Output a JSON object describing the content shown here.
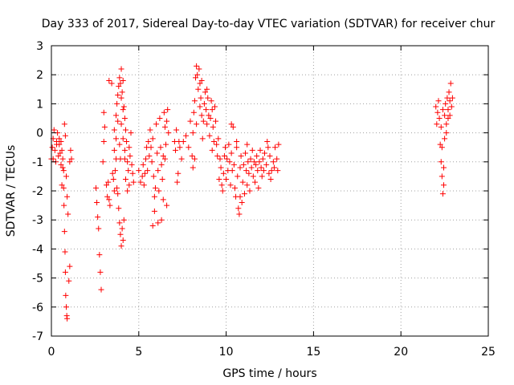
{
  "chart_data": {
    "type": "scatter",
    "title": "Day 333 of 2017, Sidereal Day-to-day VTEC variation (SDTVAR) for receiver chur",
    "xlabel": "GPS time / hours",
    "ylabel": "SDTVAR / TECUs",
    "xlim": [
      0,
      25
    ],
    "ylim": [
      -7,
      3
    ],
    "xticks": [
      0,
      5,
      10,
      15,
      20,
      25
    ],
    "yticks": [
      -7,
      -6,
      -5,
      -4,
      -3,
      -2,
      -1,
      0,
      1,
      2,
      3
    ],
    "grid": true,
    "marker": "+",
    "color": "#ff0000",
    "series": [
      {
        "name": "SDTVAR",
        "points": [
          [
            0.0,
            -0.9
          ],
          [
            0.05,
            -0.5
          ],
          [
            0.1,
            -0.2
          ],
          [
            0.15,
            0.1
          ],
          [
            0.2,
            -0.6
          ],
          [
            0.25,
            -1.0
          ],
          [
            0.3,
            -0.3
          ],
          [
            0.35,
            0.0
          ],
          [
            0.4,
            -0.8
          ],
          [
            0.45,
            -0.4
          ],
          [
            0.5,
            -0.7
          ],
          [
            0.55,
            -1.1
          ],
          [
            0.6,
            -0.6
          ],
          [
            0.65,
            -0.9
          ],
          [
            0.7,
            -1.9
          ],
          [
            0.72,
            -2.5
          ],
          [
            0.75,
            -3.4
          ],
          [
            0.78,
            -4.1
          ],
          [
            0.8,
            -4.8
          ],
          [
            0.82,
            -5.6
          ],
          [
            0.85,
            -6.0
          ],
          [
            0.88,
            -6.3
          ],
          [
            0.9,
            -6.4
          ],
          [
            0.75,
            0.3
          ],
          [
            0.8,
            -0.1
          ],
          [
            0.85,
            -1.5
          ],
          [
            0.9,
            -2.2
          ],
          [
            0.95,
            -2.8
          ],
          [
            1.0,
            -5.1
          ],
          [
            1.05,
            -1.0
          ],
          [
            1.1,
            -0.6
          ],
          [
            1.15,
            -0.9
          ],
          [
            1.05,
            -4.6
          ],
          [
            0.6,
            -1.8
          ],
          [
            0.65,
            -1.2
          ],
          [
            0.1,
            -0.9
          ],
          [
            0.3,
            -0.4
          ],
          [
            0.45,
            -0.2
          ],
          [
            0.55,
            -0.3
          ],
          [
            0.7,
            -1.3
          ],
          [
            2.55,
            -1.9
          ],
          [
            2.6,
            -2.4
          ],
          [
            2.65,
            -2.9
          ],
          [
            2.7,
            -3.3
          ],
          [
            2.75,
            -4.2
          ],
          [
            2.8,
            -4.8
          ],
          [
            2.85,
            -5.4
          ],
          [
            2.95,
            -1.0
          ],
          [
            3.0,
            -0.3
          ],
          [
            3.05,
            0.2
          ],
          [
            3.0,
            0.7
          ],
          [
            3.15,
            -1.8
          ],
          [
            3.2,
            -2.2
          ],
          [
            3.25,
            -1.7
          ],
          [
            3.3,
            -2.3
          ],
          [
            3.35,
            -2.5
          ],
          [
            3.3,
            1.8
          ],
          [
            3.45,
            1.7
          ],
          [
            3.5,
            -1.4
          ],
          [
            3.55,
            -1.6
          ],
          [
            3.6,
            -2.0
          ],
          [
            3.65,
            -1.3
          ],
          [
            3.7,
            -0.9
          ],
          [
            3.75,
            -1.9
          ],
          [
            3.8,
            -2.1
          ],
          [
            3.85,
            -2.6
          ],
          [
            3.9,
            -3.1
          ],
          [
            3.95,
            -3.5
          ],
          [
            4.0,
            -3.9
          ],
          [
            4.05,
            -3.3
          ],
          [
            4.1,
            -3.7
          ],
          [
            4.15,
            -3.0
          ],
          [
            3.6,
            0.1
          ],
          [
            3.7,
            0.6
          ],
          [
            3.75,
            1.0
          ],
          [
            3.8,
            1.3
          ],
          [
            3.85,
            1.6
          ],
          [
            3.9,
            1.9
          ],
          [
            3.95,
            1.7
          ],
          [
            4.0,
            2.2
          ],
          [
            4.05,
            1.4
          ],
          [
            4.1,
            1.8
          ],
          [
            4.15,
            0.9
          ],
          [
            4.2,
            0.5
          ],
          [
            3.6,
            -0.6
          ],
          [
            3.7,
            -0.2
          ],
          [
            3.8,
            0.4
          ],
          [
            3.9,
            -0.4
          ],
          [
            4.0,
            0.3
          ],
          [
            4.1,
            -0.2
          ],
          [
            4.2,
            -0.6
          ],
          [
            4.25,
            0.1
          ],
          [
            4.3,
            -0.3
          ],
          [
            4.35,
            -1.0
          ],
          [
            4.4,
            -1.3
          ],
          [
            4.45,
            -0.5
          ],
          [
            4.5,
            -0.8
          ],
          [
            4.55,
            0.0
          ],
          [
            4.6,
            -1.1
          ],
          [
            4.65,
            -1.4
          ],
          [
            4.7,
            -1.7
          ],
          [
            4.45,
            -1.8
          ],
          [
            4.35,
            -2.0
          ],
          [
            4.25,
            -1.6
          ],
          [
            4.0,
            1.2
          ],
          [
            4.1,
            0.8
          ],
          [
            3.95,
            -0.9
          ],
          [
            4.2,
            -0.9
          ],
          [
            5.0,
            -1.3
          ],
          [
            5.1,
            -1.7
          ],
          [
            5.2,
            -1.5
          ],
          [
            5.25,
            -1.1
          ],
          [
            5.3,
            -1.8
          ],
          [
            5.35,
            -1.4
          ],
          [
            5.4,
            -0.9
          ],
          [
            5.45,
            -0.5
          ],
          [
            5.5,
            -1.3
          ],
          [
            5.55,
            -0.3
          ],
          [
            5.6,
            -0.8
          ],
          [
            5.65,
            0.1
          ],
          [
            5.7,
            -0.5
          ],
          [
            5.75,
            -1.0
          ],
          [
            5.8,
            -0.2
          ],
          [
            5.85,
            -1.5
          ],
          [
            5.9,
            -2.7
          ],
          [
            5.95,
            -1.9
          ],
          [
            6.0,
            0.3
          ],
          [
            6.05,
            -0.7
          ],
          [
            6.1,
            -1.3
          ],
          [
            6.15,
            -2.0
          ],
          [
            6.2,
            0.5
          ],
          [
            6.25,
            -0.5
          ],
          [
            6.3,
            -1.1
          ],
          [
            6.35,
            -1.6
          ],
          [
            6.4,
            -2.3
          ],
          [
            6.45,
            0.7
          ],
          [
            6.5,
            0.2
          ],
          [
            6.55,
            -0.4
          ],
          [
            6.6,
            -2.5
          ],
          [
            6.65,
            0.8
          ],
          [
            6.7,
            0.0
          ],
          [
            5.8,
            -3.2
          ],
          [
            5.9,
            -2.2
          ],
          [
            6.1,
            -3.1
          ],
          [
            6.3,
            -3.0
          ],
          [
            6.4,
            -0.8
          ],
          [
            6.5,
            -0.9
          ],
          [
            6.6,
            0.4
          ],
          [
            7.05,
            -0.3
          ],
          [
            7.1,
            -0.6
          ],
          [
            7.15,
            0.1
          ],
          [
            7.2,
            -1.7
          ],
          [
            7.25,
            -1.4
          ],
          [
            7.3,
            -0.3
          ],
          [
            7.35,
            -0.5
          ],
          [
            7.45,
            -0.9
          ],
          [
            7.55,
            -0.3
          ],
          [
            7.7,
            -0.1
          ],
          [
            7.85,
            -0.5
          ],
          [
            7.95,
            0.4
          ],
          [
            8.05,
            -0.8
          ],
          [
            8.1,
            0.0
          ],
          [
            8.15,
            0.7
          ],
          [
            8.2,
            1.1
          ],
          [
            8.25,
            1.9
          ],
          [
            8.3,
            2.3
          ],
          [
            8.35,
            2.0
          ],
          [
            8.4,
            1.5
          ],
          [
            8.45,
            2.2
          ],
          [
            8.5,
            1.7
          ],
          [
            8.55,
            1.2
          ],
          [
            8.6,
            0.6
          ],
          [
            8.65,
            -0.2
          ],
          [
            8.7,
            0.4
          ],
          [
            8.75,
            1.0
          ],
          [
            8.8,
            1.4
          ],
          [
            8.85,
            0.8
          ],
          [
            8.9,
            0.3
          ],
          [
            8.95,
            1.2
          ],
          [
            9.0,
            0.6
          ],
          [
            9.05,
            -0.1
          ],
          [
            9.1,
            0.5
          ],
          [
            9.15,
            1.1
          ],
          [
            9.2,
            0.8
          ],
          [
            9.25,
            0.2
          ],
          [
            9.3,
            -0.3
          ],
          [
            9.35,
            0.9
          ],
          [
            9.4,
            0.4
          ],
          [
            9.45,
            -0.4
          ],
          [
            9.5,
            -0.8
          ],
          [
            9.55,
            -0.2
          ],
          [
            8.1,
            -1.2
          ],
          [
            8.2,
            -0.9
          ],
          [
            8.3,
            0.3
          ],
          [
            8.5,
            0.9
          ],
          [
            8.6,
            1.8
          ],
          [
            8.9,
            1.5
          ],
          [
            9.2,
            -0.6
          ],
          [
            9.6,
            -1.6
          ],
          [
            9.65,
            -0.9
          ],
          [
            9.7,
            -1.2
          ],
          [
            9.75,
            -1.8
          ],
          [
            9.8,
            -2.0
          ],
          [
            9.85,
            -1.4
          ],
          [
            9.9,
            -0.8
          ],
          [
            9.95,
            -0.5
          ],
          [
            10.0,
            -1.6
          ],
          [
            10.05,
            -0.9
          ],
          [
            10.1,
            -1.3
          ],
          [
            10.15,
            -0.4
          ],
          [
            10.2,
            -1.0
          ],
          [
            10.25,
            -1.8
          ],
          [
            10.3,
            -0.7
          ],
          [
            10.35,
            -1.3
          ],
          [
            10.4,
            0.2
          ],
          [
            10.45,
            -1.1
          ],
          [
            10.5,
            -1.9
          ],
          [
            10.55,
            -2.2
          ],
          [
            10.6,
            -0.5
          ],
          [
            10.65,
            -1.5
          ],
          [
            10.7,
            -2.6
          ],
          [
            10.75,
            -2.8
          ],
          [
            10.8,
            -1.2
          ],
          [
            10.85,
            -0.8
          ],
          [
            10.9,
            -2.4
          ],
          [
            10.95,
            -1.7
          ],
          [
            11.0,
            -1.1
          ],
          [
            11.05,
            -2.1
          ],
          [
            11.1,
            -0.7
          ],
          [
            11.15,
            -1.3
          ],
          [
            11.2,
            -1.8
          ],
          [
            11.25,
            -1.0
          ],
          [
            11.3,
            -1.4
          ],
          [
            11.35,
            -2.0
          ],
          [
            11.4,
            -0.9
          ],
          [
            11.45,
            -1.2
          ],
          [
            11.5,
            -0.6
          ],
          [
            11.55,
            -1.5
          ],
          [
            11.6,
            -1.0
          ],
          [
            11.65,
            -1.7
          ],
          [
            11.7,
            -1.1
          ],
          [
            11.75,
            -0.8
          ],
          [
            11.8,
            -1.3
          ],
          [
            11.85,
            -1.9
          ],
          [
            11.9,
            -1.0
          ],
          [
            11.95,
            -0.6
          ],
          [
            12.0,
            -1.2
          ],
          [
            12.05,
            -1.5
          ],
          [
            12.1,
            -0.9
          ],
          [
            12.15,
            -1.3
          ],
          [
            12.2,
            -0.7
          ],
          [
            12.3,
            -1.1
          ],
          [
            12.4,
            -0.5
          ],
          [
            12.45,
            -1.4
          ],
          [
            12.5,
            -0.8
          ],
          [
            12.6,
            -1.3
          ],
          [
            12.7,
            -1.0
          ],
          [
            12.8,
            -0.5
          ],
          [
            12.9,
            -0.9
          ],
          [
            12.95,
            -1.3
          ],
          [
            13.0,
            -0.4
          ],
          [
            10.3,
            0.3
          ],
          [
            10.6,
            -0.3
          ],
          [
            10.8,
            -2.2
          ],
          [
            11.2,
            -0.4
          ],
          [
            12.35,
            -0.3
          ],
          [
            12.55,
            -1.6
          ],
          [
            12.75,
            -1.2
          ],
          [
            22.0,
            0.9
          ],
          [
            22.05,
            0.3
          ],
          [
            22.1,
            0.7
          ],
          [
            22.15,
            1.1
          ],
          [
            22.2,
            0.5
          ],
          [
            22.25,
            -0.4
          ],
          [
            22.3,
            -1.0
          ],
          [
            22.35,
            -1.5
          ],
          [
            22.4,
            -2.1
          ],
          [
            22.45,
            -1.8
          ],
          [
            22.5,
            0.6
          ],
          [
            22.55,
            1.0
          ],
          [
            22.6,
            0.3
          ],
          [
            22.65,
            1.2
          ],
          [
            22.7,
            0.8
          ],
          [
            22.75,
            1.4
          ],
          [
            22.8,
            0.6
          ],
          [
            22.85,
            1.7
          ],
          [
            22.9,
            0.9
          ],
          [
            22.95,
            1.2
          ],
          [
            22.3,
            0.2
          ],
          [
            22.4,
            0.8
          ],
          [
            22.5,
            -0.2
          ],
          [
            22.6,
            0.0
          ],
          [
            22.7,
            0.5
          ],
          [
            22.8,
            1.1
          ],
          [
            22.35,
            -0.5
          ],
          [
            22.45,
            -1.2
          ]
        ]
      }
    ]
  }
}
